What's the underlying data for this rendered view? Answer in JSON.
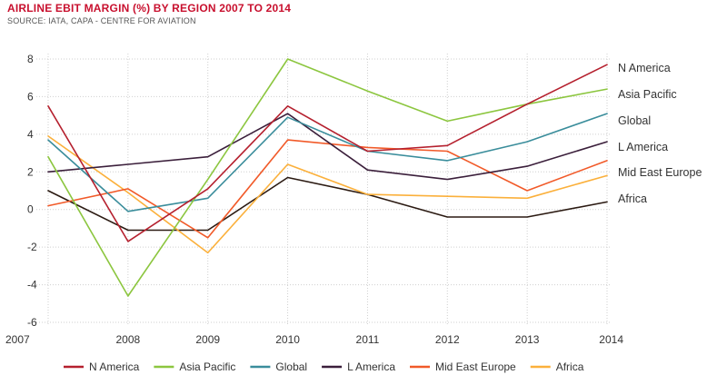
{
  "header": {
    "title": "AIRLINE EBIT MARGIN (%) BY REGION 2007 TO 2014",
    "source": "SOURCE: IATA, CAPA - CENTRE FOR AVIATION"
  },
  "chart_data": {
    "type": "line",
    "title": "AIRLINE EBIT MARGIN (%) BY REGION 2007 TO 2014",
    "subtitle": "SOURCE: IATA, CAPA - CENTRE FOR AVIATION",
    "xlabel": "",
    "ylabel": "",
    "x": [
      "2007",
      "2008",
      "2009",
      "2010",
      "2011",
      "2012",
      "2013",
      "2014"
    ],
    "ylim": [
      -6,
      8
    ],
    "yticks": [
      8,
      6,
      4,
      2,
      0,
      -2,
      -4,
      -6
    ],
    "ytick_labels": [
      "8",
      "6",
      "4",
      "2",
      "0",
      "-2",
      "-4",
      "-6"
    ],
    "grid": true,
    "legend_position": "bottom",
    "series": [
      {
        "name": "N America",
        "color": "#b5202e",
        "values": [
          5.5,
          -1.7,
          1.1,
          5.5,
          3.1,
          3.4,
          5.6,
          7.7
        ],
        "end_label": "N America"
      },
      {
        "name": "Asia Pacific",
        "color": "#8cc63f",
        "values": [
          2.8,
          -4.6,
          1.6,
          8.0,
          6.3,
          4.7,
          5.6,
          6.4
        ],
        "end_label": "Asia Pacific"
      },
      {
        "name": "Global",
        "color": "#3a8d9b",
        "values": [
          3.7,
          -0.1,
          0.6,
          4.9,
          3.1,
          2.6,
          3.6,
          5.1
        ],
        "end_label": "Global"
      },
      {
        "name": "L America",
        "color": "#3b1f3b",
        "values": [
          2.0,
          2.4,
          2.8,
          5.1,
          2.1,
          1.6,
          2.3,
          3.6
        ],
        "end_label": "L America"
      },
      {
        "name": "Mid East Europe",
        "color": "#f15a29",
        "values": [
          0.2,
          1.1,
          -1.5,
          3.7,
          3.3,
          3.1,
          1.0,
          2.6
        ],
        "end_label": "Mid East Europe"
      },
      {
        "name": "Africa",
        "color": "#fbb03b",
        "values": [
          3.9,
          0.9,
          -2.3,
          2.4,
          0.8,
          0.7,
          0.6,
          1.8
        ],
        "end_label": ""
      },
      {
        "name": "",
        "color": "#2b1a12",
        "values": [
          1.0,
          -1.1,
          -1.1,
          1.7,
          0.8,
          -0.4,
          -0.4,
          0.4
        ],
        "end_label": "Africa"
      }
    ]
  }
}
